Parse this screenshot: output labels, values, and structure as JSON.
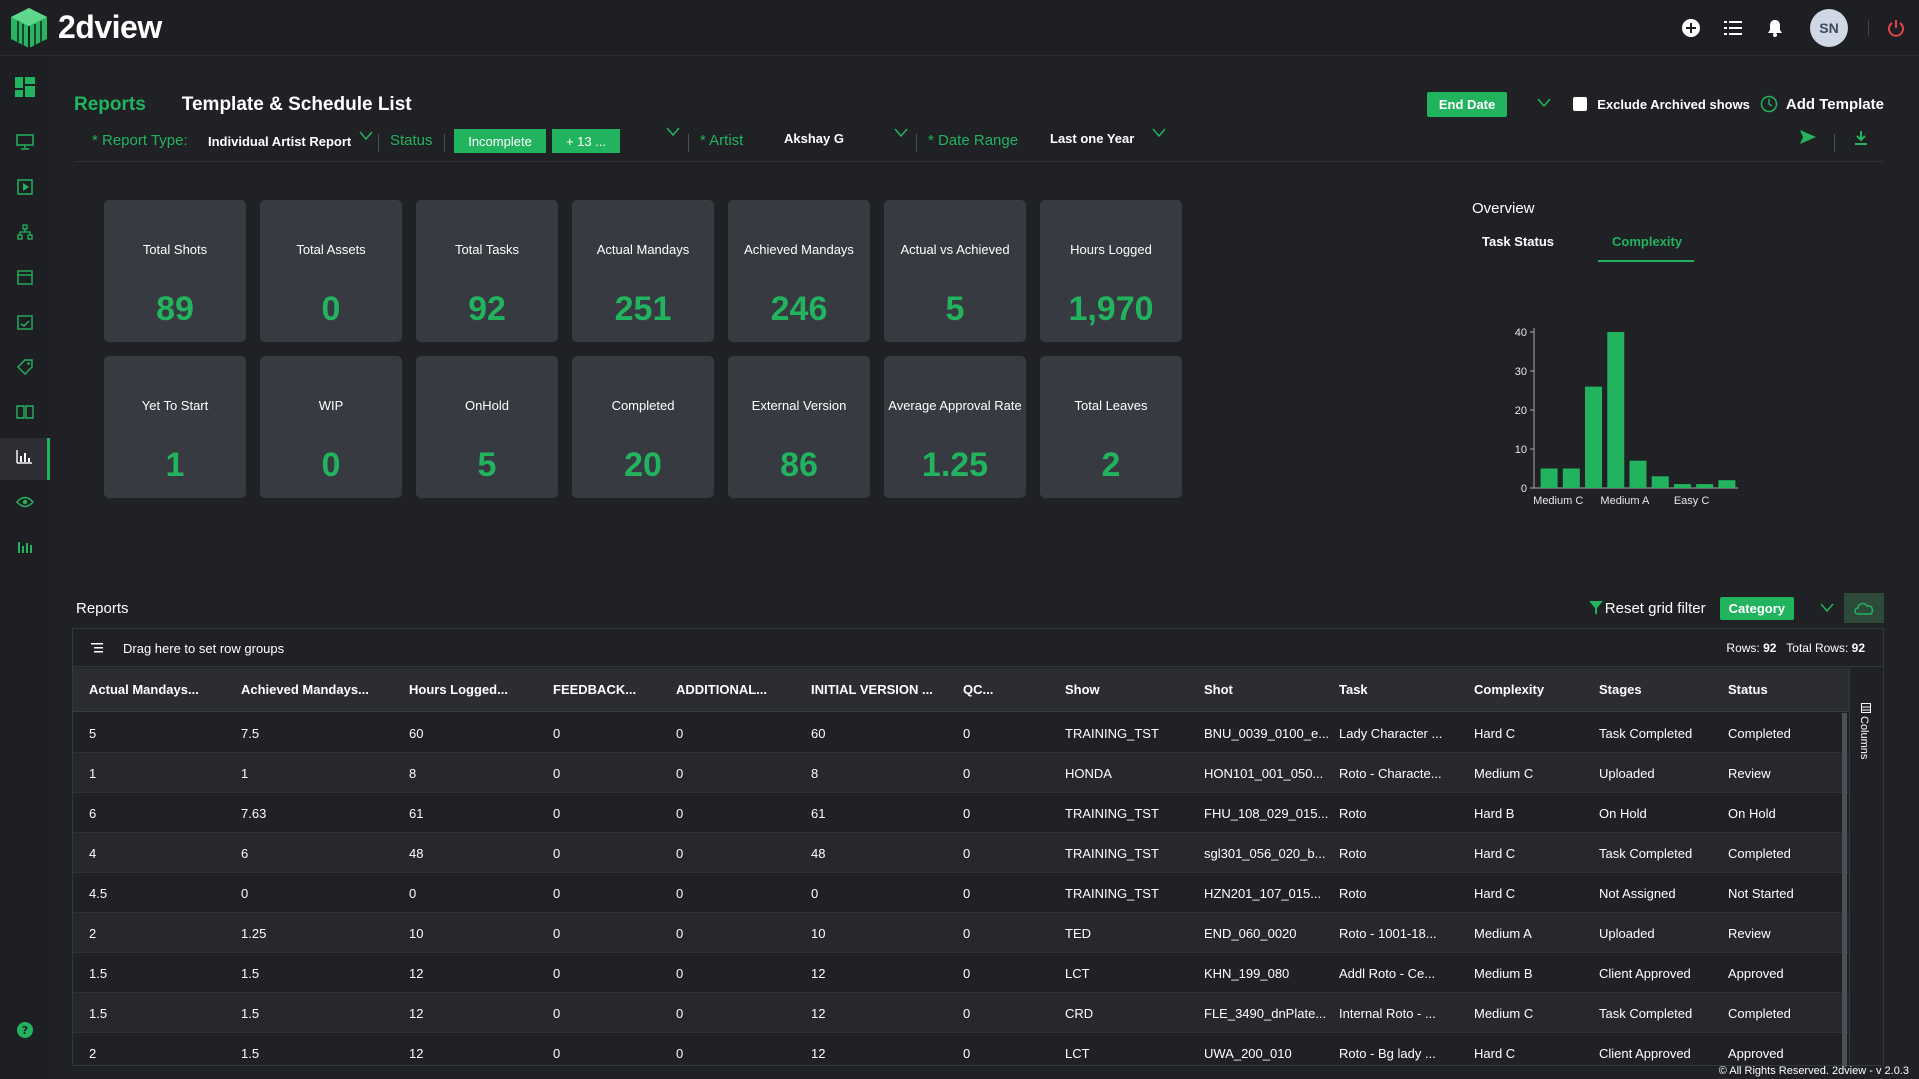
{
  "app": {
    "name": "2dview",
    "user_initials": "SN"
  },
  "header": {
    "crumb": "Reports",
    "title": "Template & Schedule List",
    "end_date_label": "End Date",
    "exclude_archived_label": "Exclude Archived shows",
    "add_template_label": "Add Template"
  },
  "filters": {
    "report_type_label": "* Report Type:",
    "report_type_value": "Individual Artist Report",
    "status_label": "Status",
    "status_tag": "Incomplete",
    "status_more": "+ 13 ...",
    "artist_label": "* Artist",
    "artist_value": "Akshay G",
    "date_range_label": "* Date Range",
    "date_range_value": "Last one Year"
  },
  "stats": [
    {
      "label": "Total Shots",
      "value": "89"
    },
    {
      "label": "Total Assets",
      "value": "0"
    },
    {
      "label": "Total Tasks",
      "value": "92"
    },
    {
      "label": "Actual Mandays",
      "value": "251"
    },
    {
      "label": "Achieved Mandays",
      "value": "246"
    },
    {
      "label": "Actual vs Achieved",
      "value": "5"
    },
    {
      "label": "Hours Logged",
      "value": "1,970"
    },
    {
      "label": "Yet To Start",
      "value": "1"
    },
    {
      "label": "WIP",
      "value": "0"
    },
    {
      "label": "OnHold",
      "value": "5"
    },
    {
      "label": "Completed",
      "value": "20"
    },
    {
      "label": "External Version",
      "value": "86"
    },
    {
      "label": "Average Approval Rate",
      "value": "1.25"
    },
    {
      "label": "Total Leaves",
      "value": "2"
    }
  ],
  "overview": {
    "title": "Overview",
    "tabs": [
      "Task Status",
      "Complexity"
    ],
    "active_tab": "Complexity"
  },
  "chart_data": {
    "type": "bar",
    "title": "",
    "xlabel": "",
    "ylabel": "",
    "ylim": [
      0,
      40
    ],
    "yticks": [
      0,
      10,
      20,
      30,
      40
    ],
    "tick_labels": [
      "Medium C",
      "Medium A",
      "Easy C"
    ],
    "tick_label_positions": [
      0.5,
      3.5,
      6.5
    ],
    "values": [
      5,
      5,
      26,
      40,
      7,
      3,
      1,
      1,
      2
    ],
    "color": "#22b35e"
  },
  "grid": {
    "title": "Reports",
    "reset_filter_label": "Reset grid filter",
    "category_label": "Category",
    "group_hint": "Drag here to set row groups",
    "rows_label": "Rows:",
    "rows_value": "92",
    "total_rows_label": "Total Rows:",
    "total_rows_value": "92",
    "columns_panel_label": "Columns",
    "columns": [
      "Actual Mandays...",
      "Achieved Mandays...",
      "Hours Logged...",
      "FEEDBACK...",
      "ADDITIONAL...",
      "INITIAL VERSION ...",
      "QC...",
      "Show",
      "Shot",
      "Task",
      "Complexity",
      "Stages",
      "Status"
    ],
    "rows": [
      [
        "5",
        "7.5",
        "60",
        "0",
        "0",
        "60",
        "0",
        "TRAINING_TST",
        "BNU_0039_0100_e...",
        "Lady Character ...",
        "Hard C",
        "Task Completed",
        "Completed"
      ],
      [
        "1",
        "1",
        "8",
        "0",
        "0",
        "8",
        "0",
        "HONDA",
        "HON101_001_050...",
        "Roto - Characte...",
        "Medium C",
        "Uploaded",
        "Review"
      ],
      [
        "6",
        "7.63",
        "61",
        "0",
        "0",
        "61",
        "0",
        "TRAINING_TST",
        "FHU_108_029_015...",
        "Roto",
        "Hard B",
        "On Hold",
        "On Hold"
      ],
      [
        "4",
        "6",
        "48",
        "0",
        "0",
        "48",
        "0",
        "TRAINING_TST",
        "sgl301_056_020_b...",
        "Roto",
        "Hard C",
        "Task Completed",
        "Completed"
      ],
      [
        "4.5",
        "0",
        "0",
        "0",
        "0",
        "0",
        "0",
        "TRAINING_TST",
        "HZN201_107_015...",
        "Roto",
        "Hard C",
        "Not Assigned",
        "Not Started"
      ],
      [
        "2",
        "1.25",
        "10",
        "0",
        "0",
        "10",
        "0",
        "TED",
        "END_060_0020",
        "Roto - 1001-18...",
        "Medium A",
        "Uploaded",
        "Review"
      ],
      [
        "1.5",
        "1.5",
        "12",
        "0",
        "0",
        "12",
        "0",
        "LCT",
        "KHN_199_080",
        "Addl Roto - Ce...",
        "Medium B",
        "Client Approved",
        "Approved"
      ],
      [
        "1.5",
        "1.5",
        "12",
        "0",
        "0",
        "12",
        "0",
        "CRD",
        "FLE_3490_dnPlate...",
        "Internal Roto - ...",
        "Medium C",
        "Task Completed",
        "Completed"
      ],
      [
        "2",
        "1.5",
        "12",
        "0",
        "0",
        "12",
        "0",
        "LCT",
        "UWA_200_010",
        "Roto - Bg lady ...",
        "Hard C",
        "Client Approved",
        "Approved"
      ]
    ]
  },
  "footer": "© All Rights Reserved. 2dview - v 2.0.3",
  "colors": {
    "accent": "#22b35e",
    "card": "#373a41",
    "background": "#1f2125"
  }
}
